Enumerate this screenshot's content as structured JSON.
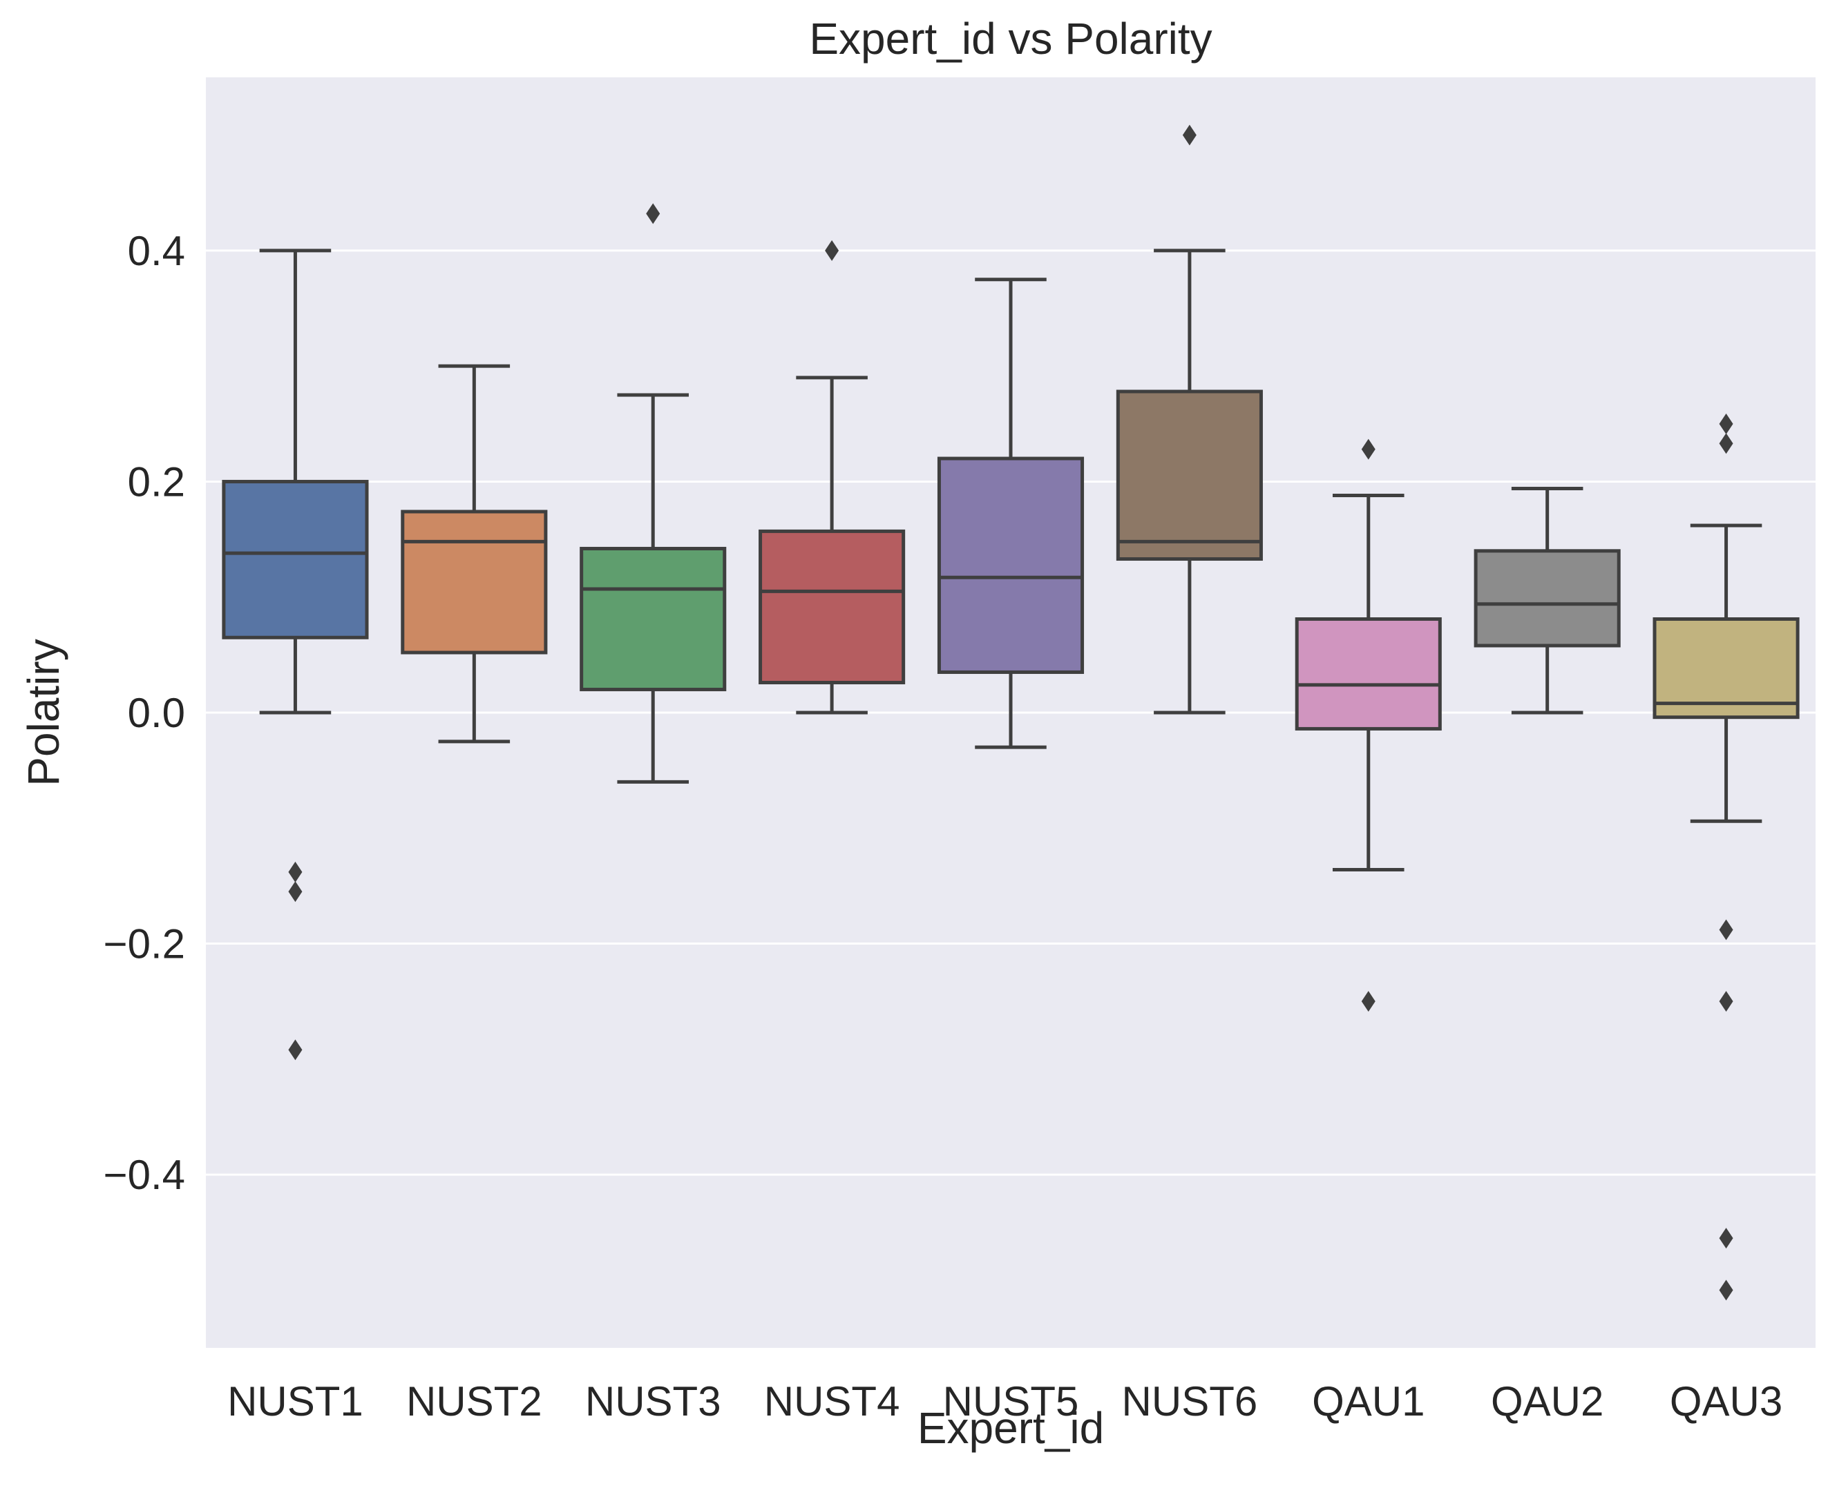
{
  "chart_data": {
    "type": "box",
    "title": "Expert_id vs Polarity",
    "xlabel": "Expert_id",
    "ylabel": "Polatiry",
    "ylim": [
      -0.55,
      0.55
    ],
    "yticks": [
      -0.4,
      -0.2,
      0.0,
      0.2,
      0.4
    ],
    "ytick_labels": [
      "−0.4",
      "−0.2",
      "0.0",
      "0.2",
      "0.4"
    ],
    "grid": true,
    "background_color": "#eaeaf2",
    "line_color": "#3f3f3f",
    "categories": [
      "NUST1",
      "NUST2",
      "NUST3",
      "NUST4",
      "NUST5",
      "NUST6",
      "QAU1",
      "QAU2",
      "QAU3"
    ],
    "boxes": [
      {
        "name": "NUST1",
        "color": "#5875a4",
        "whislo": 0.0,
        "q1": 0.065,
        "med": 0.138,
        "q3": 0.2,
        "whishi": 0.4,
        "fliers": [
          -0.138,
          -0.155,
          -0.292
        ]
      },
      {
        "name": "NUST2",
        "color": "#cc8963",
        "whislo": -0.025,
        "q1": 0.052,
        "med": 0.148,
        "q3": 0.174,
        "whishi": 0.3,
        "fliers": []
      },
      {
        "name": "NUST3",
        "color": "#5f9e6e",
        "whislo": -0.06,
        "q1": 0.02,
        "med": 0.107,
        "q3": 0.142,
        "whishi": 0.275,
        "fliers": [
          0.432
        ]
      },
      {
        "name": "NUST4",
        "color": "#b55d60",
        "whislo": 0.0,
        "q1": 0.026,
        "med": 0.105,
        "q3": 0.157,
        "whishi": 0.29,
        "fliers": [
          0.4
        ]
      },
      {
        "name": "NUST5",
        "color": "#857aab",
        "whislo": -0.03,
        "q1": 0.035,
        "med": 0.117,
        "q3": 0.22,
        "whishi": 0.375,
        "fliers": []
      },
      {
        "name": "NUST6",
        "color": "#8d7866",
        "whislo": 0.0,
        "q1": 0.133,
        "med": 0.148,
        "q3": 0.278,
        "whishi": 0.4,
        "fliers": [
          0.5
        ]
      },
      {
        "name": "QAU1",
        "color": "#d095bf",
        "whislo": -0.136,
        "q1": -0.014,
        "med": 0.024,
        "q3": 0.081,
        "whishi": 0.188,
        "fliers": [
          0.228,
          -0.25
        ]
      },
      {
        "name": "QAU2",
        "color": "#8c8c8c",
        "whislo": 0.0,
        "q1": 0.058,
        "med": 0.094,
        "q3": 0.14,
        "whishi": 0.194,
        "fliers": []
      },
      {
        "name": "QAU3",
        "color": "#c1b37f",
        "whislo": -0.094,
        "q1": -0.004,
        "med": 0.008,
        "q3": 0.081,
        "whishi": 0.162,
        "fliers": [
          0.25,
          0.233,
          -0.188,
          -0.25,
          -0.455,
          -0.5
        ]
      }
    ]
  }
}
